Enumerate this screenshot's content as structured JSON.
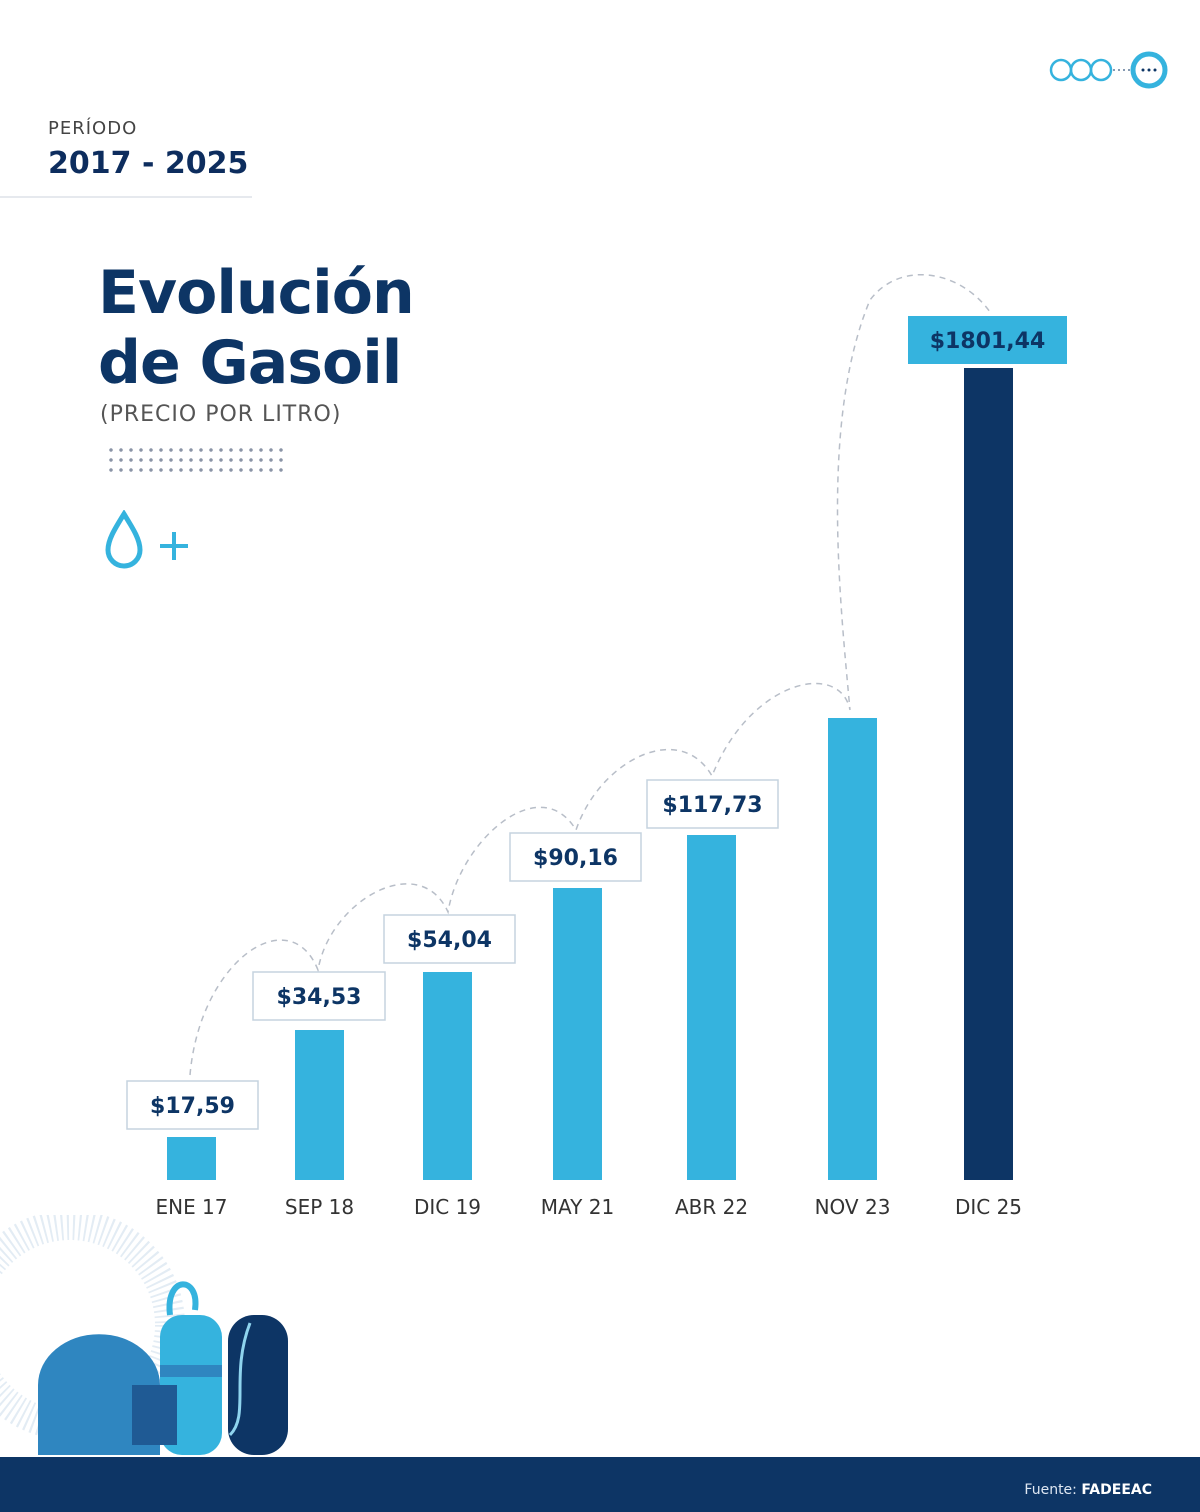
{
  "header": {
    "period_label": "PERÍODO",
    "period_value": "2017 - 2025"
  },
  "title_line1": "Evolución",
  "title_line2": "de Gasoil",
  "subtitle": "(PRECIO POR LITRO)",
  "icons": [
    "drop-plus-icon",
    "dots-menu-icon",
    "fuel-tanks-illustration"
  ],
  "colors": {
    "bar": "#35b3de",
    "bar_highlight": "#0d3565",
    "navy": "#0d3565"
  },
  "chart_data": {
    "type": "bar",
    "categories": [
      "ENE 17",
      "SEP 18",
      "DIC 19",
      "MAY 21",
      "ABR 22",
      "NOV 23",
      "DIC 25"
    ],
    "values": [
      17.59,
      34.53,
      54.04,
      90.16,
      117.73,
      null,
      1801.44
    ],
    "labels": [
      "$17,59",
      "$34,53",
      "$54,04",
      "$90,16",
      "$117,73",
      "",
      "$1801,44"
    ],
    "unit": "$ por litro",
    "grid": false
  },
  "footer": {
    "source_label": "Fuente:",
    "source_value": "FADEEAC"
  }
}
